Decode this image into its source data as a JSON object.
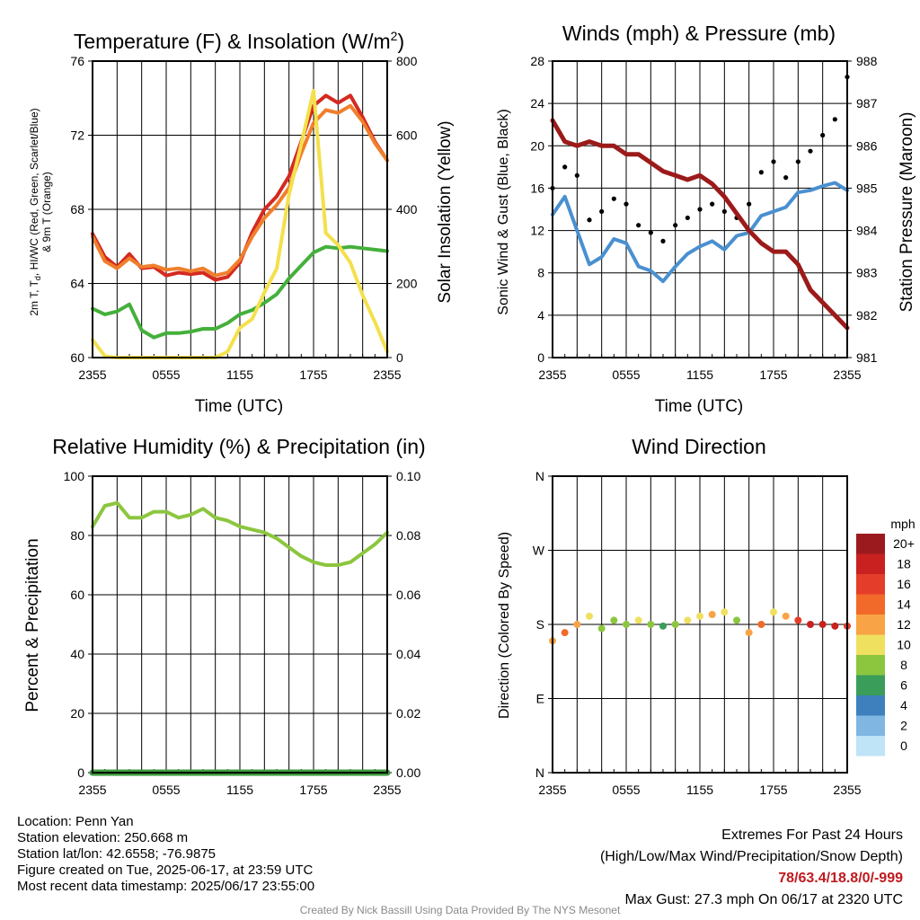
{
  "panels": {
    "temp": {
      "title": "Temperature (F) & Insolation (W/m",
      "title_sup": "2",
      "title_end": ")",
      "ylabel_left_line1": "2m T, T",
      "ylabel_left_sub": "d",
      "ylabel_left_line1b": ", HI/WC (Red, Green, Scarlet/Blue)",
      "ylabel_left_line2": "& 9m T (Orange)",
      "ylabel_right": "Solar Insolation (Yellow)",
      "xlabel": "Time (UTC)"
    },
    "wind": {
      "title": "Winds (mph) & Pressure (mb)",
      "ylabel_left": "Sonic Wind & Gust (Blue, Black)",
      "ylabel_right": "Station Pressure (Maroon)",
      "xlabel": "Time (UTC)"
    },
    "rh": {
      "title": "Relative Humidity (%) & Precipitation (in)",
      "ylabel_left": "Percent & Precipitation"
    },
    "dir": {
      "title": "Wind Direction",
      "ylabel_left": "Direction (Colored By Speed)",
      "legend_title": "mph"
    }
  },
  "chart_data": [
    {
      "type": "line",
      "x_ticks": [
        "2355",
        "0555",
        "1155",
        "1755",
        "2355"
      ],
      "y_ticks_left": [
        "60",
        "64",
        "68",
        "72",
        "76"
      ],
      "y_ticks_right": [
        "0",
        "200",
        "400",
        "600",
        "800"
      ],
      "ylim_left": [
        58.6,
        79.2
      ],
      "ylim_right": [
        0,
        1000
      ],
      "x_hours": [
        0,
        1,
        2,
        3,
        4,
        5,
        6,
        7,
        8,
        9,
        10,
        11,
        12,
        13,
        14,
        15,
        16,
        17,
        18,
        19,
        20,
        21,
        22,
        23,
        24
      ],
      "series": [
        {
          "color": "#d42a20",
          "values": [
            67.2,
            65.6,
            64.9,
            65.8,
            64.8,
            64.9,
            64.3,
            64.5,
            64.4,
            64.5,
            64.0,
            64.2,
            65.2,
            67.3,
            68.9,
            69.8,
            71.2,
            73.6,
            76.1,
            76.8,
            76.3,
            76.8,
            75.3,
            73.6,
            72.3
          ]
        },
        {
          "color": "#f07f2c",
          "values": [
            67.0,
            65.3,
            64.8,
            65.5,
            64.9,
            65.0,
            64.7,
            64.8,
            64.6,
            64.8,
            64.3,
            64.5,
            65.4,
            67.0,
            68.3,
            69.2,
            70.4,
            72.8,
            74.9,
            75.8,
            75.6,
            76.1,
            75.0,
            73.5,
            72.3
          ]
        },
        {
          "color": "#44b03b",
          "values": [
            62.0,
            61.6,
            61.8,
            62.3,
            60.5,
            60.0,
            60.3,
            60.3,
            60.4,
            60.6,
            60.6,
            61.0,
            61.6,
            61.9,
            62.4,
            63.0,
            64.1,
            65.0,
            65.9,
            66.3,
            66.2,
            66.3,
            66.2,
            66.1,
            66.0
          ]
        },
        {
          "color": "#f4e04d",
          "axis": "right",
          "values": [
            60,
            5,
            0,
            0,
            0,
            0,
            0,
            0,
            0,
            0,
            0,
            20,
            100,
            130,
            220,
            300,
            550,
            720,
            900,
            420,
            380,
            320,
            210,
            120,
            20
          ]
        }
      ]
    },
    {
      "type": "line",
      "x_ticks": [
        "2355",
        "0555",
        "1155",
        "1755",
        "2355"
      ],
      "y_ticks_left": [
        "0",
        "4",
        "8",
        "12",
        "16",
        "20",
        "24",
        "28"
      ],
      "y_ticks_right": [
        "981",
        "982",
        "983",
        "984",
        "985",
        "986",
        "987",
        "988"
      ],
      "ylim_left": [
        0,
        28
      ],
      "ylim_right": [
        981,
        988
      ],
      "x_hours": [
        0,
        1,
        2,
        3,
        4,
        5,
        6,
        7,
        8,
        9,
        10,
        11,
        12,
        13,
        14,
        15,
        16,
        17,
        18,
        19,
        20,
        21,
        22,
        23,
        24
      ],
      "series": [
        {
          "color": "#4a90d0",
          "values": [
            13.5,
            15.2,
            12.0,
            8.8,
            9.5,
            11.2,
            10.8,
            8.6,
            8.2,
            7.2,
            8.6,
            9.8,
            10.5,
            11.0,
            10.2,
            11.5,
            11.8,
            13.4,
            13.8,
            14.2,
            15.6,
            15.8,
            16.2,
            16.5,
            15.8
          ]
        },
        {
          "color": "#000000",
          "type": "scatter",
          "values": [
            16.0,
            18.0,
            17.2,
            13.0,
            13.8,
            15.0,
            14.5,
            12.5,
            11.8,
            11.0,
            12.5,
            13.2,
            14.0,
            14.5,
            13.8,
            13.2,
            14.5,
            17.5,
            18.5,
            17.0,
            18.5,
            19.5,
            21.0,
            22.5,
            26.5
          ]
        },
        {
          "color": "#9c1a1a",
          "axis": "right",
          "values": [
            986.6,
            986.1,
            986.0,
            986.1,
            986.0,
            986.0,
            985.8,
            985.8,
            985.6,
            985.4,
            985.3,
            985.2,
            985.3,
            985.1,
            984.8,
            984.4,
            984.0,
            983.7,
            983.5,
            983.5,
            983.2,
            982.6,
            982.3,
            982.0,
            981.7
          ]
        }
      ]
    },
    {
      "type": "line",
      "x_ticks": [
        "2355",
        "0555",
        "1155",
        "1755",
        "2355"
      ],
      "y_ticks_left": [
        "0",
        "20",
        "40",
        "60",
        "80",
        "100"
      ],
      "y_ticks_right": [
        "0.00",
        "0.02",
        "0.04",
        "0.06",
        "0.08",
        "0.10"
      ],
      "ylim_left": [
        0,
        100
      ],
      "ylim_right": [
        0,
        0.1
      ],
      "x_hours": [
        0,
        1,
        2,
        3,
        4,
        5,
        6,
        7,
        8,
        9,
        10,
        11,
        12,
        13,
        14,
        15,
        16,
        17,
        18,
        19,
        20,
        21,
        22,
        23,
        24
      ],
      "series": [
        {
          "color": "#8cc63f",
          "values": [
            83,
            90,
            91,
            86,
            86,
            88,
            88,
            86,
            87,
            89,
            86,
            85,
            83,
            82,
            81,
            79,
            76,
            73,
            71,
            70,
            70,
            71,
            74,
            77,
            81
          ]
        },
        {
          "color": "#3a9a3a",
          "axis": "right",
          "values": [
            0,
            0,
            0,
            0,
            0,
            0,
            0,
            0,
            0,
            0,
            0,
            0,
            0,
            0,
            0,
            0,
            0,
            0,
            0,
            0,
            0,
            0,
            0,
            0,
            0
          ]
        }
      ]
    },
    {
      "type": "scatter",
      "x_ticks": [
        "2355",
        "0555",
        "1155",
        "1755",
        "2355"
      ],
      "y_ticks_left": [
        "N",
        "E",
        "S",
        "W",
        "N"
      ],
      "ylim_left": [
        0,
        360
      ],
      "x_hours": [
        0,
        1,
        2,
        3,
        4,
        5,
        6,
        7,
        8,
        9,
        10,
        11,
        12,
        13,
        14,
        15,
        16,
        17,
        18,
        19,
        20,
        21,
        22,
        23,
        24
      ],
      "directions": [
        160,
        170,
        180,
        190,
        175,
        185,
        180,
        185,
        180,
        178,
        180,
        185,
        190,
        192,
        195,
        185,
        170,
        180,
        195,
        190,
        185,
        180,
        180,
        178,
        178
      ],
      "speeds": [
        12,
        14,
        11,
        10,
        7,
        8,
        7,
        9,
        8,
        6,
        7,
        9,
        10,
        11,
        9,
        8,
        12,
        14,
        10,
        11,
        16,
        17,
        18,
        17,
        16
      ],
      "legend": {
        "labels": [
          "20+",
          "18",
          "16",
          "14",
          "12",
          "10",
          "8",
          "6",
          "4",
          "2",
          "0"
        ],
        "colors": [
          "#9b1a1e",
          "#c8211f",
          "#e43d2a",
          "#f26a2a",
          "#f8a345",
          "#f0e060",
          "#8cc63f",
          "#3a9d5a",
          "#3e80bd",
          "#7fb6e2",
          "#bfe3f7"
        ]
      }
    }
  ],
  "info": {
    "location": "Location: Penn Yan",
    "elevation": "Station elevation: 250.668 m",
    "latlon": "Station lat/lon: 42.6558; -76.9875",
    "created": "Figure created on Tue, 2025-06-17, at 23:59 UTC",
    "recent": "Most recent data timestamp: 2025/06/17 23:55:00",
    "extremes_title": "Extremes For Past 24 Hours",
    "extremes_sub": "(High/Low/Max Wind/Precipitation/Snow Depth)",
    "extremes_values": "78/63.4/18.8/0/-999",
    "max_gust": "Max Gust: 27.3 mph On 06/17 at 2320 UTC",
    "credit": "Created By Nick Bassill Using Data Provided By The NYS Mesonet"
  }
}
